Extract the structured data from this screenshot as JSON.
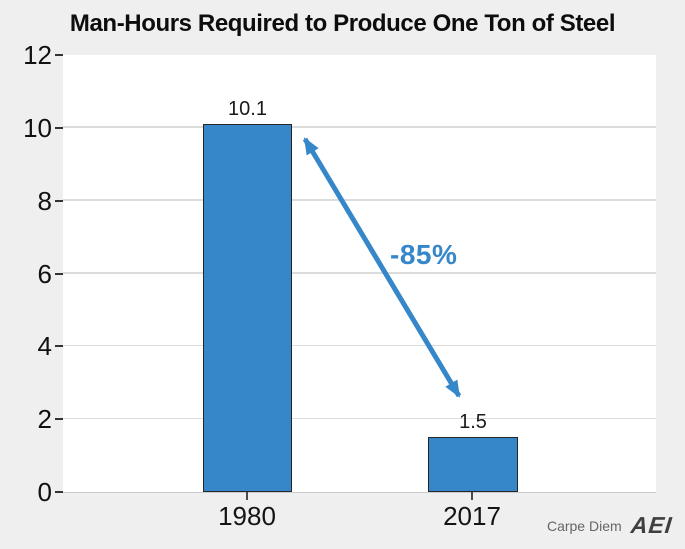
{
  "title": "Man-Hours Required to Produce One Ton of Steel",
  "chart_data": {
    "type": "bar",
    "title": "Man-Hours Required to Produce One Ton of Steel",
    "categories": [
      "1980",
      "2017"
    ],
    "values": [
      10.1,
      1.5
    ],
    "value_labels": [
      "10.1",
      "1.5"
    ],
    "xlabel": "",
    "ylabel": "",
    "ylim": [
      0,
      12
    ],
    "yticks": [
      0,
      2,
      4,
      6,
      8,
      10,
      12
    ],
    "grid": true,
    "legend": "none",
    "annotation": {
      "text": "-85%",
      "type": "double-headed-arrow",
      "from": "top of 1980 bar",
      "to": "top of 2017 bar"
    }
  },
  "colors": {
    "background": "#efefef",
    "plot_background": "#ffffff",
    "bar_fill": "#3587c9",
    "bar_border": "#262626",
    "accent": "#3587c9",
    "grid_line": "#dcdcdc",
    "text": "#0d0d0d",
    "footer_text": "#666666",
    "logo": "#3f3f3f"
  },
  "footer": {
    "credit": "Carpe Diem",
    "logo": "AEI"
  }
}
